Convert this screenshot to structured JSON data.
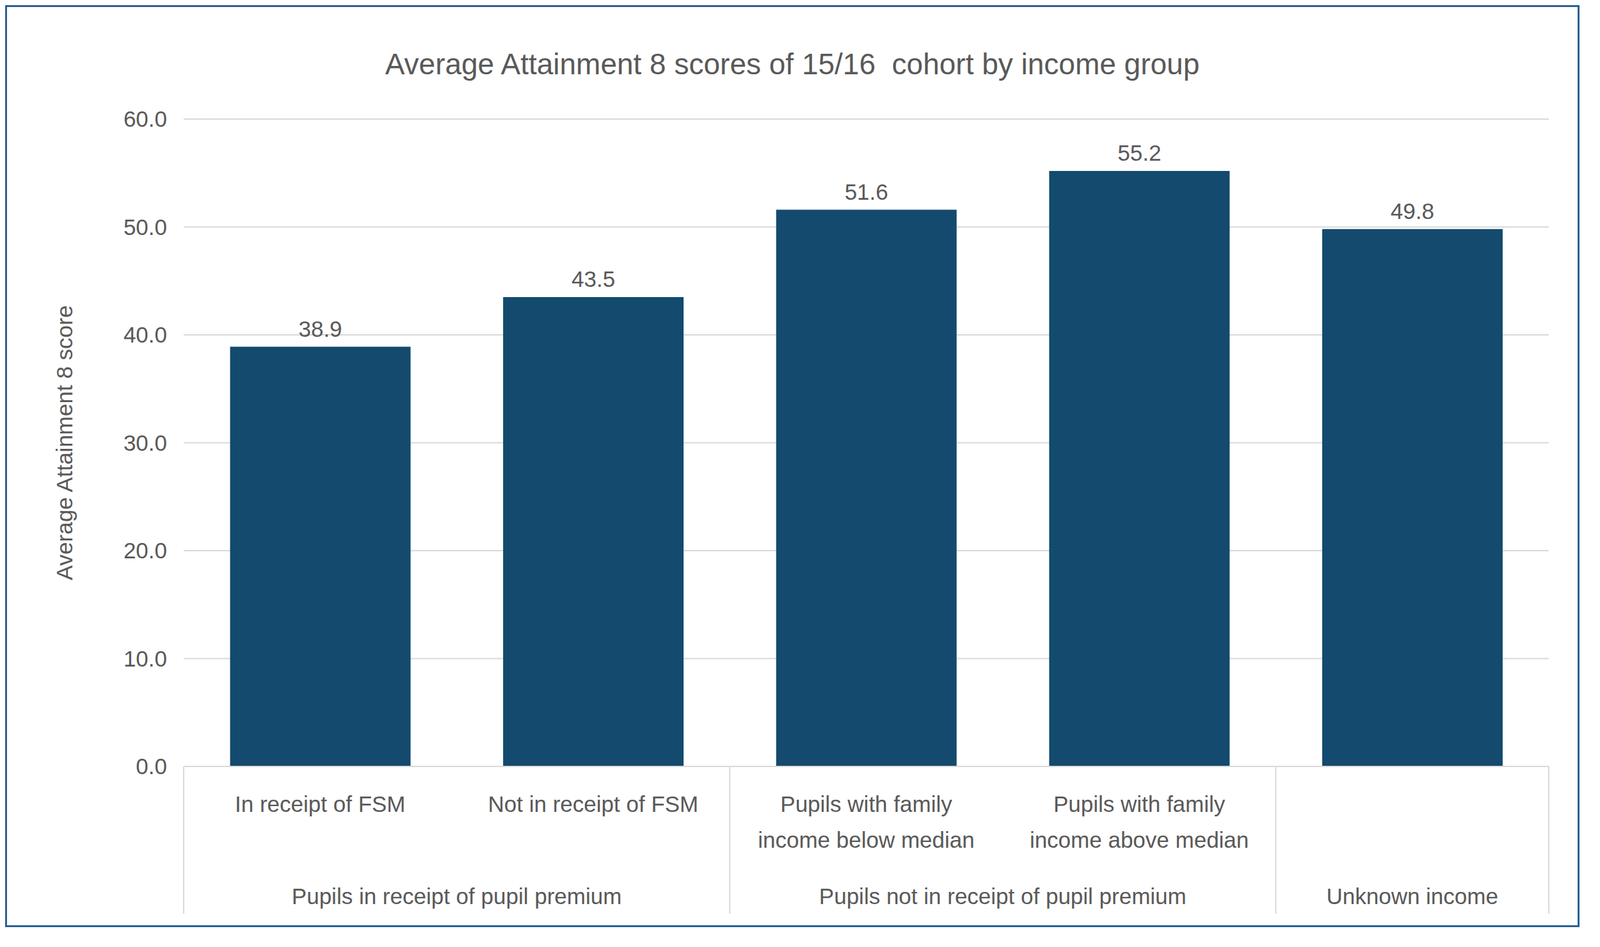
{
  "chart_data": {
    "type": "bar",
    "title": "Average Attainment 8 scores of 15/16  cohort by income group",
    "y_label": "Average Attainment 8 score",
    "categories": [
      "In receipt of FSM",
      "Not in receipt of FSM",
      "Pupils with family income below median",
      "Pupils with family income above median",
      null
    ],
    "group_labels": [
      "Pupils in receipt of pupil premium",
      "Pupils in receipt of pupil premium",
      "Pupils not in receipt of pupil premium",
      "Pupils not in receipt of pupil premium",
      "Unknown income"
    ],
    "values": [
      38.9,
      43.5,
      51.6,
      55.2,
      49.8
    ],
    "color": "#134a6e",
    "ylim": [
      0,
      60
    ],
    "yticks": [
      {
        "value": 0,
        "label": "0.0"
      },
      {
        "value": 10,
        "label": "10.0"
      },
      {
        "value": 20,
        "label": "20.0"
      },
      {
        "value": 30,
        "label": "30.0"
      },
      {
        "value": 40,
        "label": "40.0"
      },
      {
        "value": 50,
        "label": "50.0"
      },
      {
        "value": 60,
        "label": "60.0"
      }
    ],
    "grid": true,
    "data_labels": true
  }
}
